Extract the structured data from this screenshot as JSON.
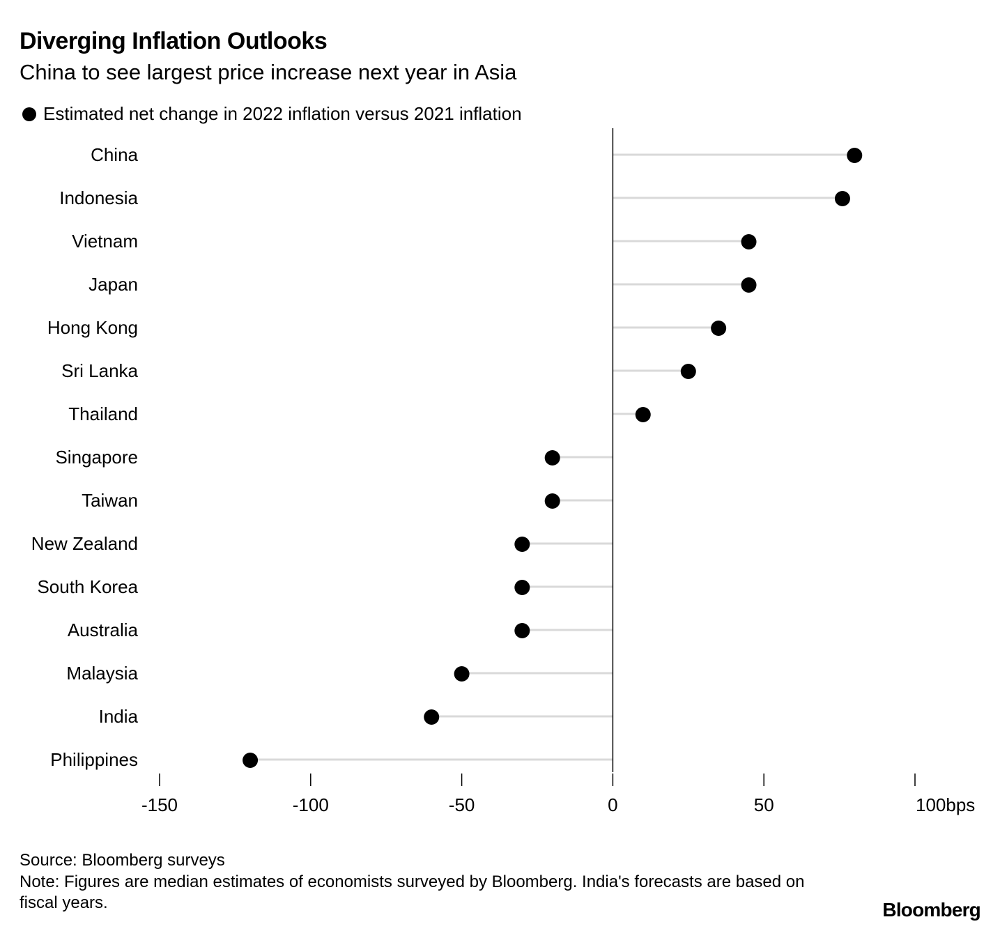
{
  "chart_data": {
    "type": "lollipop",
    "title": "Diverging Inflation Outlooks",
    "subtitle": "China to see largest price increase next year in Asia",
    "legend": "Estimated net change in 2022 inflation versus 2021 inflation",
    "categories": [
      "China",
      "Indonesia",
      "Vietnam",
      "Japan",
      "Hong Kong",
      "Sri Lanka",
      "Thailand",
      "Singapore",
      "Taiwan",
      "New Zealand",
      "South Korea",
      "Australia",
      "Malaysia",
      "India",
      "Philippines"
    ],
    "values": [
      80,
      76,
      45,
      45,
      35,
      25,
      10,
      -20,
      -20,
      -30,
      -30,
      -30,
      -50,
      -60,
      -120
    ],
    "xlim": [
      -150,
      100
    ],
    "xticks": [
      -150,
      -100,
      -50,
      0,
      50,
      100
    ],
    "xtick_labels": [
      "-150",
      "-100",
      "-50",
      "0",
      "50",
      "100bps"
    ],
    "xlabel": "",
    "ylabel": "",
    "colors": {
      "dot": "#000000",
      "stem": "#d9d9d9",
      "axis": "#000000"
    }
  },
  "footer": {
    "source": "Source: Bloomberg surveys",
    "note": "Note: Figures are median estimates of economists surveyed by Bloomberg. India's forecasts are based on fiscal years.",
    "brand": "Bloomberg"
  }
}
